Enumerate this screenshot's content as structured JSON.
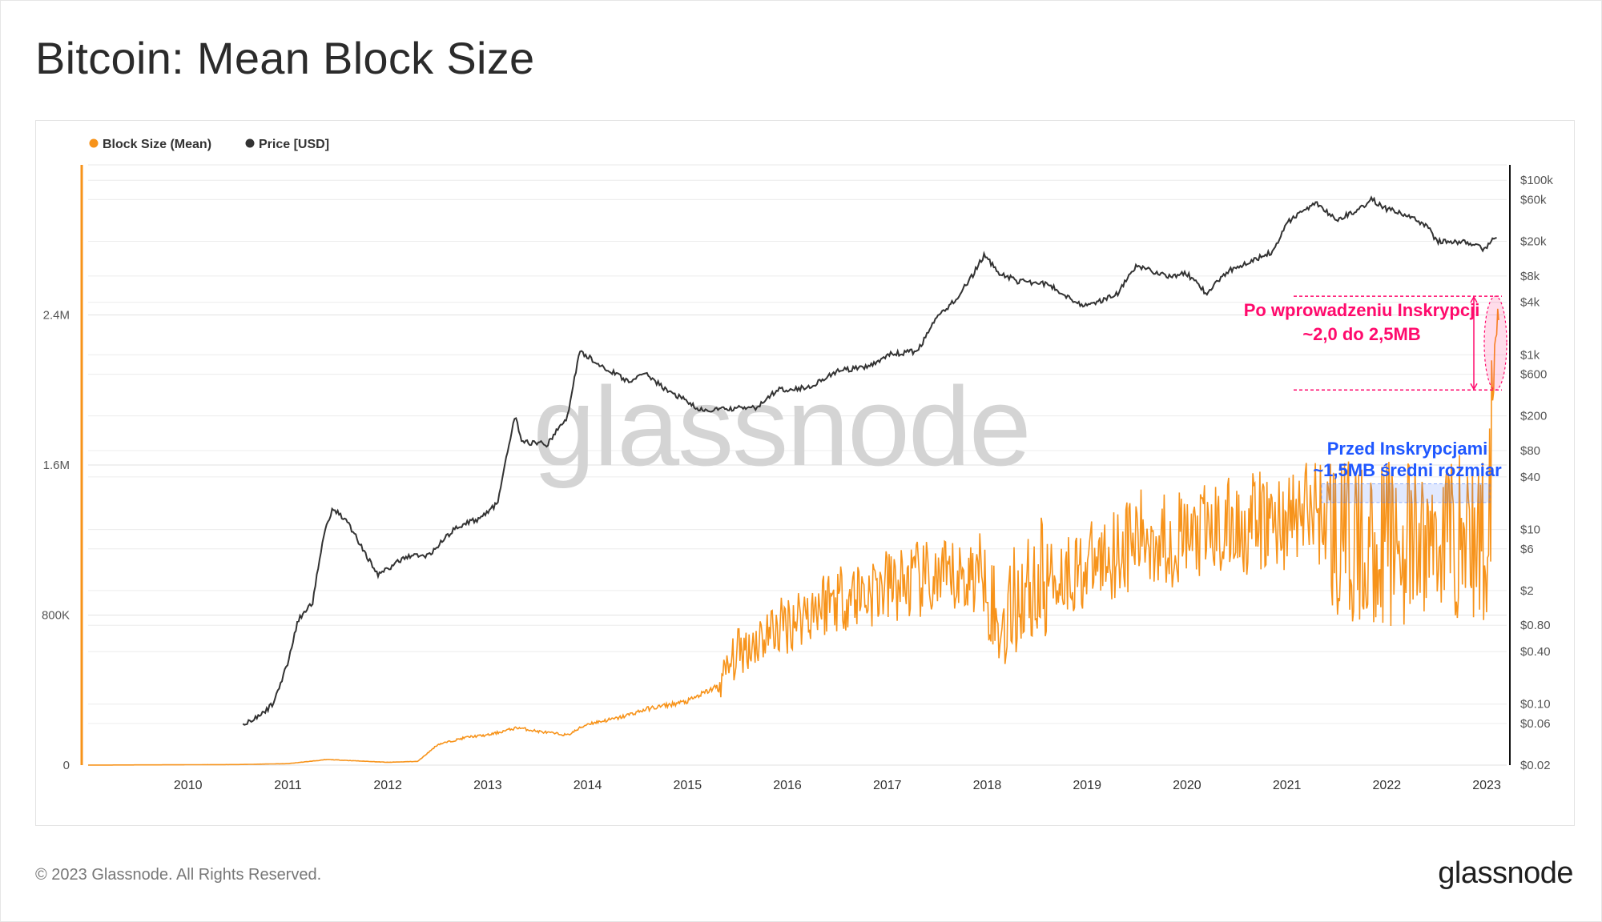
{
  "page": {
    "title": "Bitcoin: Mean Block Size",
    "copyright": "© 2023 Glassnode. All Rights Reserved.",
    "logo_text": "glassnode",
    "watermark": "glassnode"
  },
  "colors": {
    "block_size": "#f7931a",
    "price": "#333333",
    "after_annotation": "#ff0a6c",
    "before_annotation": "#1f57ff",
    "grid": "#ececec"
  },
  "chart_data": {
    "type": "line",
    "title": "Bitcoin: Mean Block Size",
    "legend": [
      {
        "name": "Block Size (Mean)",
        "color": "#f7931a"
      },
      {
        "name": "Price [USD]",
        "color": "#333333"
      }
    ],
    "x_ticks": [
      "2010",
      "2011",
      "2012",
      "2013",
      "2014",
      "2015",
      "2016",
      "2017",
      "2018",
      "2019",
      "2020",
      "2021",
      "2022",
      "2023"
    ],
    "x_range": [
      2009.0,
      2023.2
    ],
    "y_left": {
      "label": "Block Size (Mean)",
      "scale": "linear",
      "range": [
        0,
        3200000
      ],
      "ticks": [
        0,
        800000,
        1600000,
        2400000
      ],
      "tick_labels": [
        "0",
        "800K",
        "1.6M",
        "2.4M"
      ]
    },
    "y_right": {
      "label": "Price [USD]",
      "scale": "log",
      "range": [
        0.02,
        150000
      ],
      "ticks": [
        0.02,
        0.06,
        0.1,
        0.4,
        0.8,
        2,
        6,
        10,
        40,
        80,
        200,
        600,
        1000,
        4000,
        8000,
        20000,
        60000,
        100000
      ],
      "tick_labels": [
        "$0.02",
        "$0.06",
        "$0.10",
        "$0.40",
        "$0.80",
        "$2",
        "$6",
        "$10",
        "$40",
        "$80",
        "$200",
        "$600",
        "$1k",
        "$4k",
        "$8k",
        "$20k",
        "$60k",
        "$100k"
      ]
    },
    "series": [
      {
        "name": "Block Size (Mean)",
        "axis": "left",
        "unit": "bytes",
        "x": [
          2009.0,
          2010.0,
          2010.5,
          2011.0,
          2011.4,
          2011.6,
          2012.0,
          2012.3,
          2012.5,
          2012.8,
          2013.0,
          2013.3,
          2013.5,
          2013.8,
          2014.0,
          2014.3,
          2014.6,
          2015.0,
          2015.3,
          2015.5,
          2015.8,
          2016.0,
          2016.3,
          2016.5,
          2016.8,
          2017.0,
          2017.3,
          2017.6,
          2017.8,
          2018.0,
          2018.1,
          2018.3,
          2018.6,
          2019.0,
          2019.3,
          2019.6,
          2020.0,
          2020.3,
          2020.6,
          2021.0,
          2021.3,
          2021.5,
          2021.8,
          2022.0,
          2022.3,
          2022.6,
          2022.9,
          2023.0,
          2023.08,
          2023.12
        ],
        "y": [
          200,
          2000,
          3000,
          8000,
          30000,
          25000,
          15000,
          20000,
          110000,
          150000,
          160000,
          200000,
          180000,
          160000,
          220000,
          250000,
          300000,
          340000,
          420000,
          600000,
          700000,
          760000,
          850000,
          900000,
          920000,
          950000,
          980000,
          980000,
          1000000,
          1050000,
          700000,
          900000,
          1000000,
          1050000,
          1150000,
          1220000,
          1200000,
          1250000,
          1280000,
          1300000,
          1380000,
          1200000,
          1150000,
          1200000,
          1150000,
          1250000,
          1200000,
          1180000,
          2200000,
          2450000
        ]
      },
      {
        "name": "Price [USD]",
        "axis": "right",
        "unit": "USD",
        "x": [
          2010.55,
          2010.7,
          2010.85,
          2011.0,
          2011.1,
          2011.25,
          2011.35,
          2011.45,
          2011.6,
          2011.9,
          2012.2,
          2012.4,
          2012.7,
          2012.9,
          2013.1,
          2013.27,
          2013.35,
          2013.6,
          2013.8,
          2013.92,
          2014.1,
          2014.4,
          2014.6,
          2014.8,
          2015.0,
          2015.1,
          2015.4,
          2015.7,
          2015.9,
          2016.2,
          2016.5,
          2016.8,
          2017.0,
          2017.3,
          2017.5,
          2017.7,
          2017.85,
          2017.97,
          2018.1,
          2018.3,
          2018.6,
          2018.9,
          2019.0,
          2019.3,
          2019.5,
          2019.8,
          2020.0,
          2020.2,
          2020.4,
          2020.6,
          2020.85,
          2021.0,
          2021.1,
          2021.3,
          2021.5,
          2021.7,
          2021.85,
          2022.0,
          2022.2,
          2022.4,
          2022.5,
          2022.8,
          2022.95,
          2023.0,
          2023.1
        ],
        "y": [
          0.06,
          0.07,
          0.1,
          0.3,
          0.9,
          1.5,
          8,
          18,
          12,
          3,
          5,
          5,
          11,
          13,
          20,
          200,
          100,
          95,
          200,
          1100,
          800,
          500,
          600,
          380,
          300,
          230,
          240,
          250,
          400,
          420,
          650,
          720,
          1000,
          1100,
          2700,
          4500,
          8000,
          14000,
          9000,
          7000,
          6500,
          4000,
          3600,
          5000,
          10500,
          8000,
          8500,
          5000,
          9000,
          11500,
          15000,
          32000,
          40000,
          55000,
          35000,
          45000,
          60000,
          47000,
          40000,
          30000,
          20000,
          19500,
          16500,
          17000,
          23000
        ]
      }
    ],
    "annotations": [
      {
        "id": "after",
        "line1": "Po wprowadzeniu Inskrypcji",
        "line2": "~2,0 do 2,5MB",
        "range": [
          2000000,
          2500000
        ]
      },
      {
        "id": "before",
        "line1": "Przed Inskrypcjami",
        "line2": "~1,5MB średni rozmiar",
        "range": [
          1400000,
          1500000
        ]
      }
    ]
  }
}
